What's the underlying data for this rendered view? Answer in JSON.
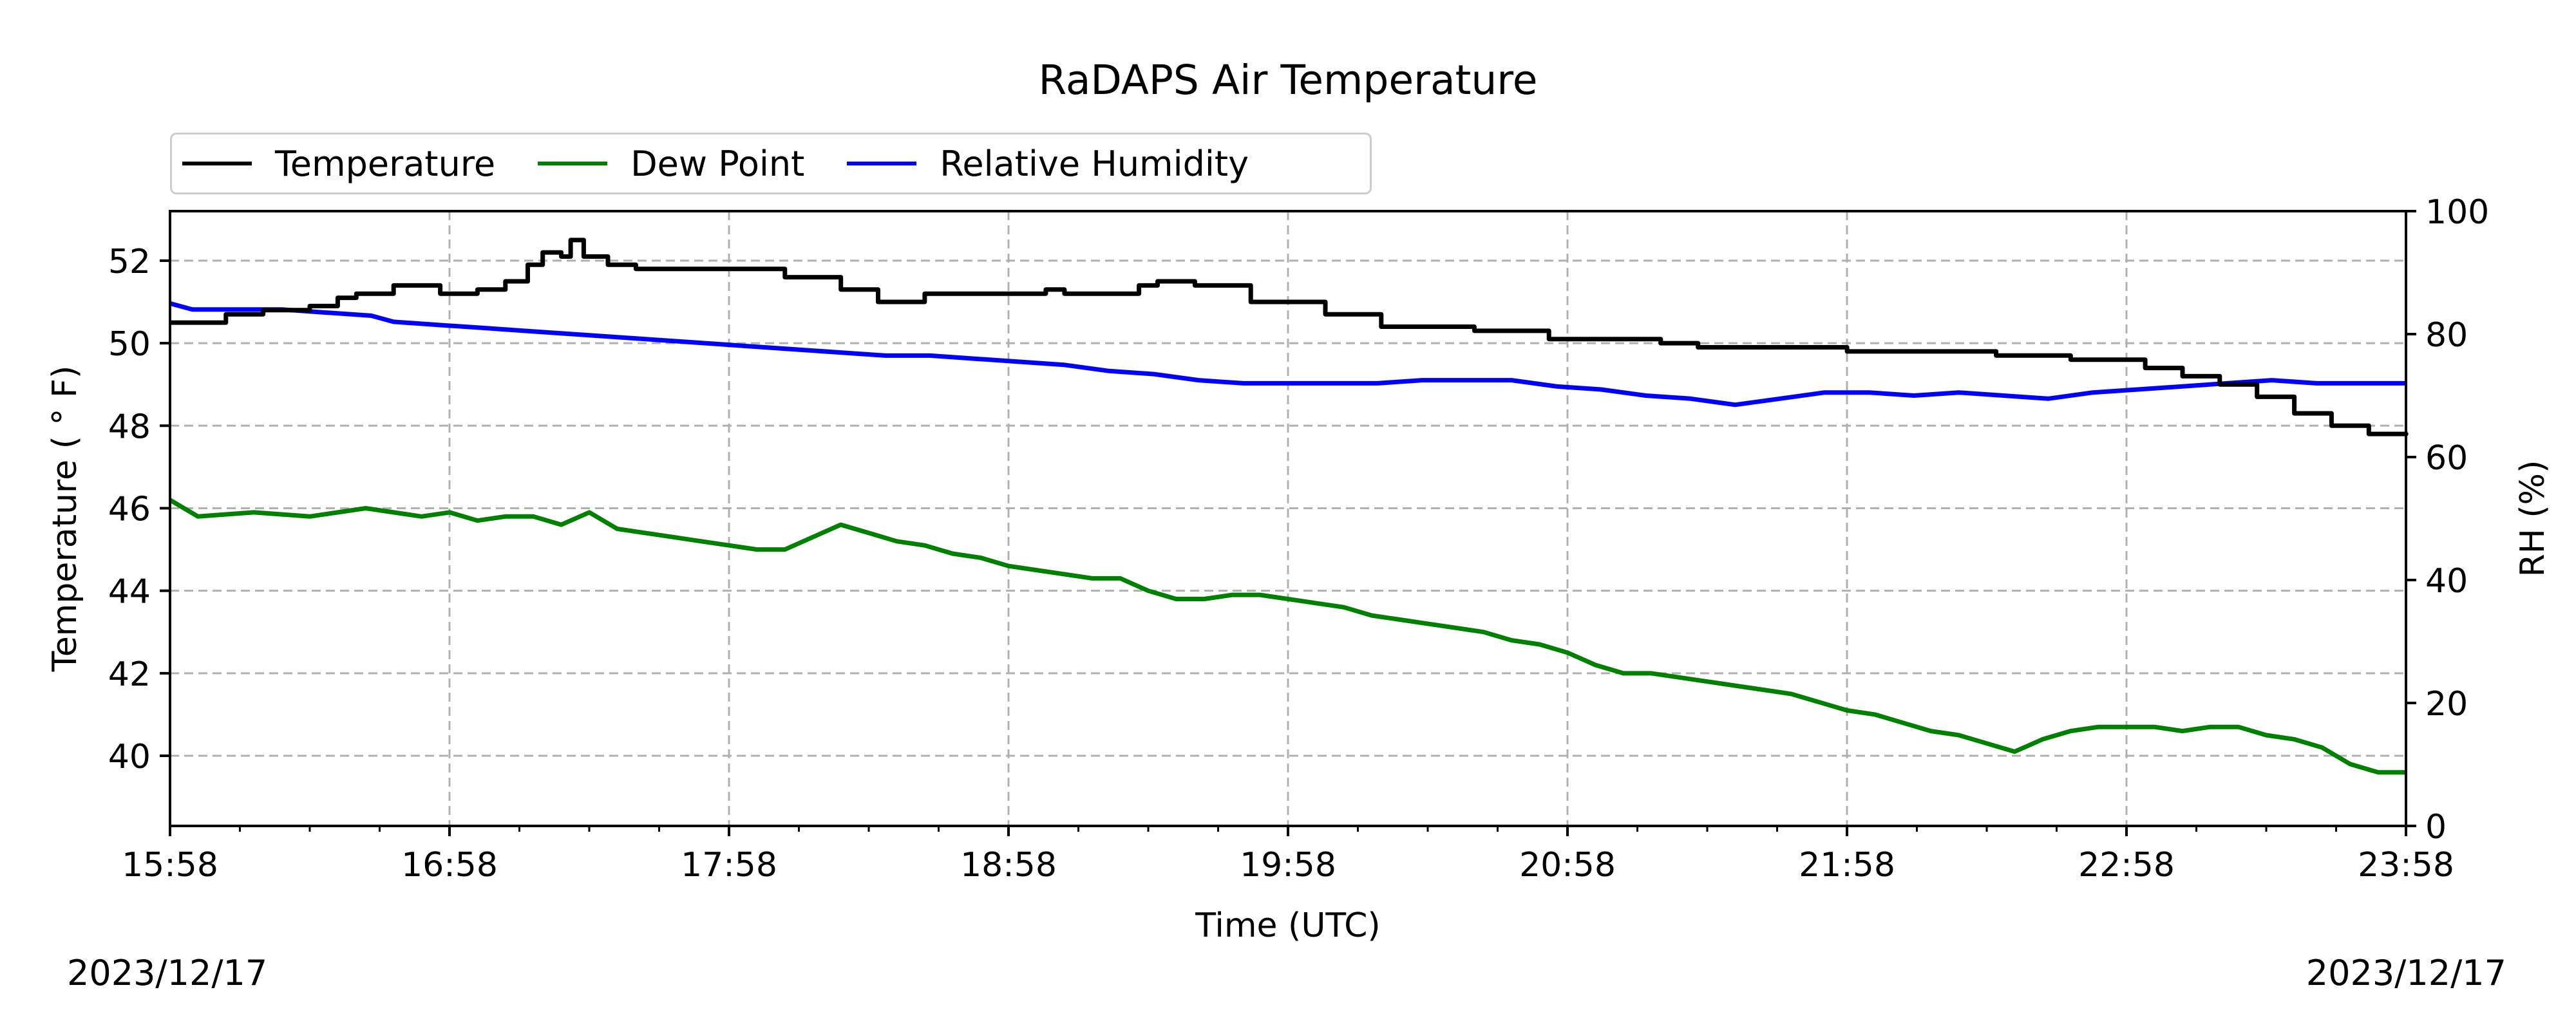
{
  "chart_data": {
    "type": "line",
    "title": "RaDAPS Air Temperature",
    "xlabel": "Time (UTC)",
    "ylabel": "Temperature ( $^\\circ$F)",
    "ylabel_display": "Temperature ( ° F)",
    "y2label": "RH (%)",
    "date_left": "2023/12/17",
    "date_right": "2023/12/17",
    "x_range_hours": [
      0,
      8
    ],
    "x_tick_labels": [
      "15:58",
      "16:58",
      "17:58",
      "18:58",
      "19:58",
      "20:58",
      "21:58",
      "22:58",
      "23:58"
    ],
    "ylim": [
      38.3,
      53.2
    ],
    "y_ticks": [
      40,
      42,
      44,
      46,
      48,
      50,
      52
    ],
    "y2lim": [
      0,
      100
    ],
    "y2_ticks": [
      0,
      20,
      40,
      60,
      80,
      100
    ],
    "grid": true,
    "legend_position": "top-left, above plot",
    "x_units": "hours after 15:58 UTC",
    "series": [
      {
        "name": "Temperature",
        "axis": "left",
        "color": "#000000",
        "step": true,
        "points": [
          [
            0,
            50.5
          ],
          [
            0.3,
            50.7
          ],
          [
            0.5,
            50.8
          ],
          [
            0.75,
            50.9
          ],
          [
            0.9,
            51.1
          ],
          [
            1.0,
            51.2
          ],
          [
            1.2,
            51.4
          ],
          [
            1.45,
            51.2
          ],
          [
            1.65,
            51.3
          ],
          [
            1.8,
            51.5
          ],
          [
            1.92,
            51.9
          ],
          [
            2.0,
            52.2
          ],
          [
            2.1,
            52.1
          ],
          [
            2.15,
            52.5
          ],
          [
            2.22,
            52.1
          ],
          [
            2.35,
            51.9
          ],
          [
            2.5,
            51.8
          ],
          [
            3.3,
            51.6
          ],
          [
            3.6,
            51.3
          ],
          [
            3.8,
            51.0
          ],
          [
            4.05,
            51.2
          ],
          [
            4.7,
            51.3
          ],
          [
            4.8,
            51.2
          ],
          [
            5.2,
            51.4
          ],
          [
            5.3,
            51.5
          ],
          [
            5.5,
            51.4
          ],
          [
            5.8,
            51.0
          ],
          [
            6.2,
            50.7
          ],
          [
            6.5,
            50.4
          ],
          [
            7.0,
            50.3
          ],
          [
            7.4,
            50.1
          ],
          [
            8.0,
            50.0
          ],
          [
            8.2,
            49.9
          ],
          [
            8.5,
            49.9
          ],
          [
            9.0,
            49.8
          ],
          [
            9.4,
            49.8
          ],
          [
            9.8,
            49.7
          ],
          [
            10.0,
            49.7
          ],
          [
            10.2,
            49.6
          ],
          [
            10.6,
            49.4
          ],
          [
            10.8,
            49.2
          ],
          [
            11.0,
            49.0
          ],
          [
            11.2,
            48.7
          ],
          [
            11.4,
            48.3
          ],
          [
            11.6,
            48.0
          ],
          [
            11.8,
            47.8
          ],
          [
            12.0,
            47.8
          ]
        ],
        "x_scale": 0.6667
      },
      {
        "name": "Dew Point",
        "axis": "left",
        "color": "#008000",
        "points": [
          [
            0,
            46.2
          ],
          [
            0.1,
            45.8
          ],
          [
            0.3,
            45.9
          ],
          [
            0.5,
            45.8
          ],
          [
            0.7,
            46.0
          ],
          [
            0.9,
            45.8
          ],
          [
            1.0,
            45.9
          ],
          [
            1.1,
            45.7
          ],
          [
            1.2,
            45.8
          ],
          [
            1.3,
            45.8
          ],
          [
            1.4,
            45.6
          ],
          [
            1.5,
            45.9
          ],
          [
            1.6,
            45.5
          ],
          [
            1.7,
            45.4
          ],
          [
            1.8,
            45.3
          ],
          [
            1.9,
            45.2
          ],
          [
            2.0,
            45.1
          ],
          [
            2.1,
            45.0
          ],
          [
            2.2,
            45.0
          ],
          [
            2.3,
            45.3
          ],
          [
            2.4,
            45.6
          ],
          [
            2.5,
            45.4
          ],
          [
            2.6,
            45.2
          ],
          [
            2.7,
            45.1
          ],
          [
            2.8,
            44.9
          ],
          [
            2.9,
            44.8
          ],
          [
            3.0,
            44.6
          ],
          [
            3.1,
            44.5
          ],
          [
            3.2,
            44.4
          ],
          [
            3.3,
            44.3
          ],
          [
            3.4,
            44.3
          ],
          [
            3.5,
            44.0
          ],
          [
            3.6,
            43.8
          ],
          [
            3.7,
            43.8
          ],
          [
            3.8,
            43.9
          ],
          [
            3.9,
            43.9
          ],
          [
            4.0,
            43.8
          ],
          [
            4.1,
            43.7
          ],
          [
            4.2,
            43.6
          ],
          [
            4.3,
            43.4
          ],
          [
            4.4,
            43.3
          ],
          [
            4.5,
            43.2
          ],
          [
            4.6,
            43.1
          ],
          [
            4.7,
            43.0
          ],
          [
            4.8,
            42.8
          ],
          [
            4.9,
            42.7
          ],
          [
            5.0,
            42.5
          ],
          [
            5.1,
            42.2
          ],
          [
            5.2,
            42.0
          ],
          [
            5.3,
            42.0
          ],
          [
            5.4,
            41.9
          ],
          [
            5.5,
            41.8
          ],
          [
            5.6,
            41.7
          ],
          [
            5.7,
            41.6
          ],
          [
            5.8,
            41.5
          ],
          [
            5.9,
            41.3
          ],
          [
            6.0,
            41.1
          ],
          [
            6.1,
            41.0
          ],
          [
            6.2,
            40.8
          ],
          [
            6.3,
            40.6
          ],
          [
            6.4,
            40.5
          ],
          [
            6.5,
            40.3
          ],
          [
            6.6,
            40.1
          ],
          [
            6.7,
            40.4
          ],
          [
            6.8,
            40.6
          ],
          [
            6.9,
            40.7
          ],
          [
            7.0,
            40.7
          ],
          [
            7.1,
            40.7
          ],
          [
            7.2,
            40.6
          ],
          [
            7.3,
            40.7
          ],
          [
            7.4,
            40.7
          ],
          [
            7.5,
            40.5
          ],
          [
            7.6,
            40.4
          ],
          [
            7.7,
            40.2
          ],
          [
            7.8,
            39.8
          ],
          [
            7.9,
            39.6
          ],
          [
            8.0,
            39.6
          ]
        ],
        "x_scale": 1.0
      },
      {
        "name": "Relative Humidity",
        "axis": "right",
        "color": "#0000ff",
        "points": [
          [
            0,
            85
          ],
          [
            0.1,
            84
          ],
          [
            0.3,
            84
          ],
          [
            0.5,
            84
          ],
          [
            0.7,
            83.5
          ],
          [
            0.9,
            83
          ],
          [
            1.0,
            82
          ],
          [
            1.2,
            81.5
          ],
          [
            1.4,
            81
          ],
          [
            1.6,
            80.5
          ],
          [
            1.8,
            80
          ],
          [
            2.0,
            79.5
          ],
          [
            2.2,
            79
          ],
          [
            2.4,
            78.5
          ],
          [
            2.6,
            78
          ],
          [
            2.8,
            77.5
          ],
          [
            3.0,
            77
          ],
          [
            3.2,
            76.5
          ],
          [
            3.4,
            76.5
          ],
          [
            3.6,
            76
          ],
          [
            3.8,
            75.5
          ],
          [
            4.0,
            75
          ],
          [
            4.2,
            74
          ],
          [
            4.4,
            73.5
          ],
          [
            4.6,
            72.5
          ],
          [
            4.8,
            72
          ],
          [
            5.0,
            72
          ],
          [
            5.2,
            72
          ],
          [
            5.4,
            72
          ],
          [
            5.6,
            72.5
          ],
          [
            5.8,
            72.5
          ],
          [
            6.0,
            72.5
          ],
          [
            6.2,
            71.5
          ],
          [
            6.4,
            71
          ],
          [
            6.6,
            70
          ],
          [
            6.8,
            69.5
          ],
          [
            7.0,
            68.5
          ],
          [
            7.2,
            69.5
          ],
          [
            7.4,
            70.5
          ],
          [
            7.6,
            70.5
          ],
          [
            7.8,
            70
          ],
          [
            8.0,
            70.5
          ],
          [
            8.2,
            70
          ],
          [
            8.4,
            69.5
          ],
          [
            8.6,
            70.5
          ],
          [
            8.8,
            71
          ],
          [
            9.0,
            71.5
          ],
          [
            9.2,
            72
          ],
          [
            9.4,
            72.5
          ],
          [
            9.6,
            72
          ],
          [
            9.8,
            72
          ],
          [
            10.0,
            72
          ]
        ],
        "x_scale": 0.8
      }
    ]
  }
}
